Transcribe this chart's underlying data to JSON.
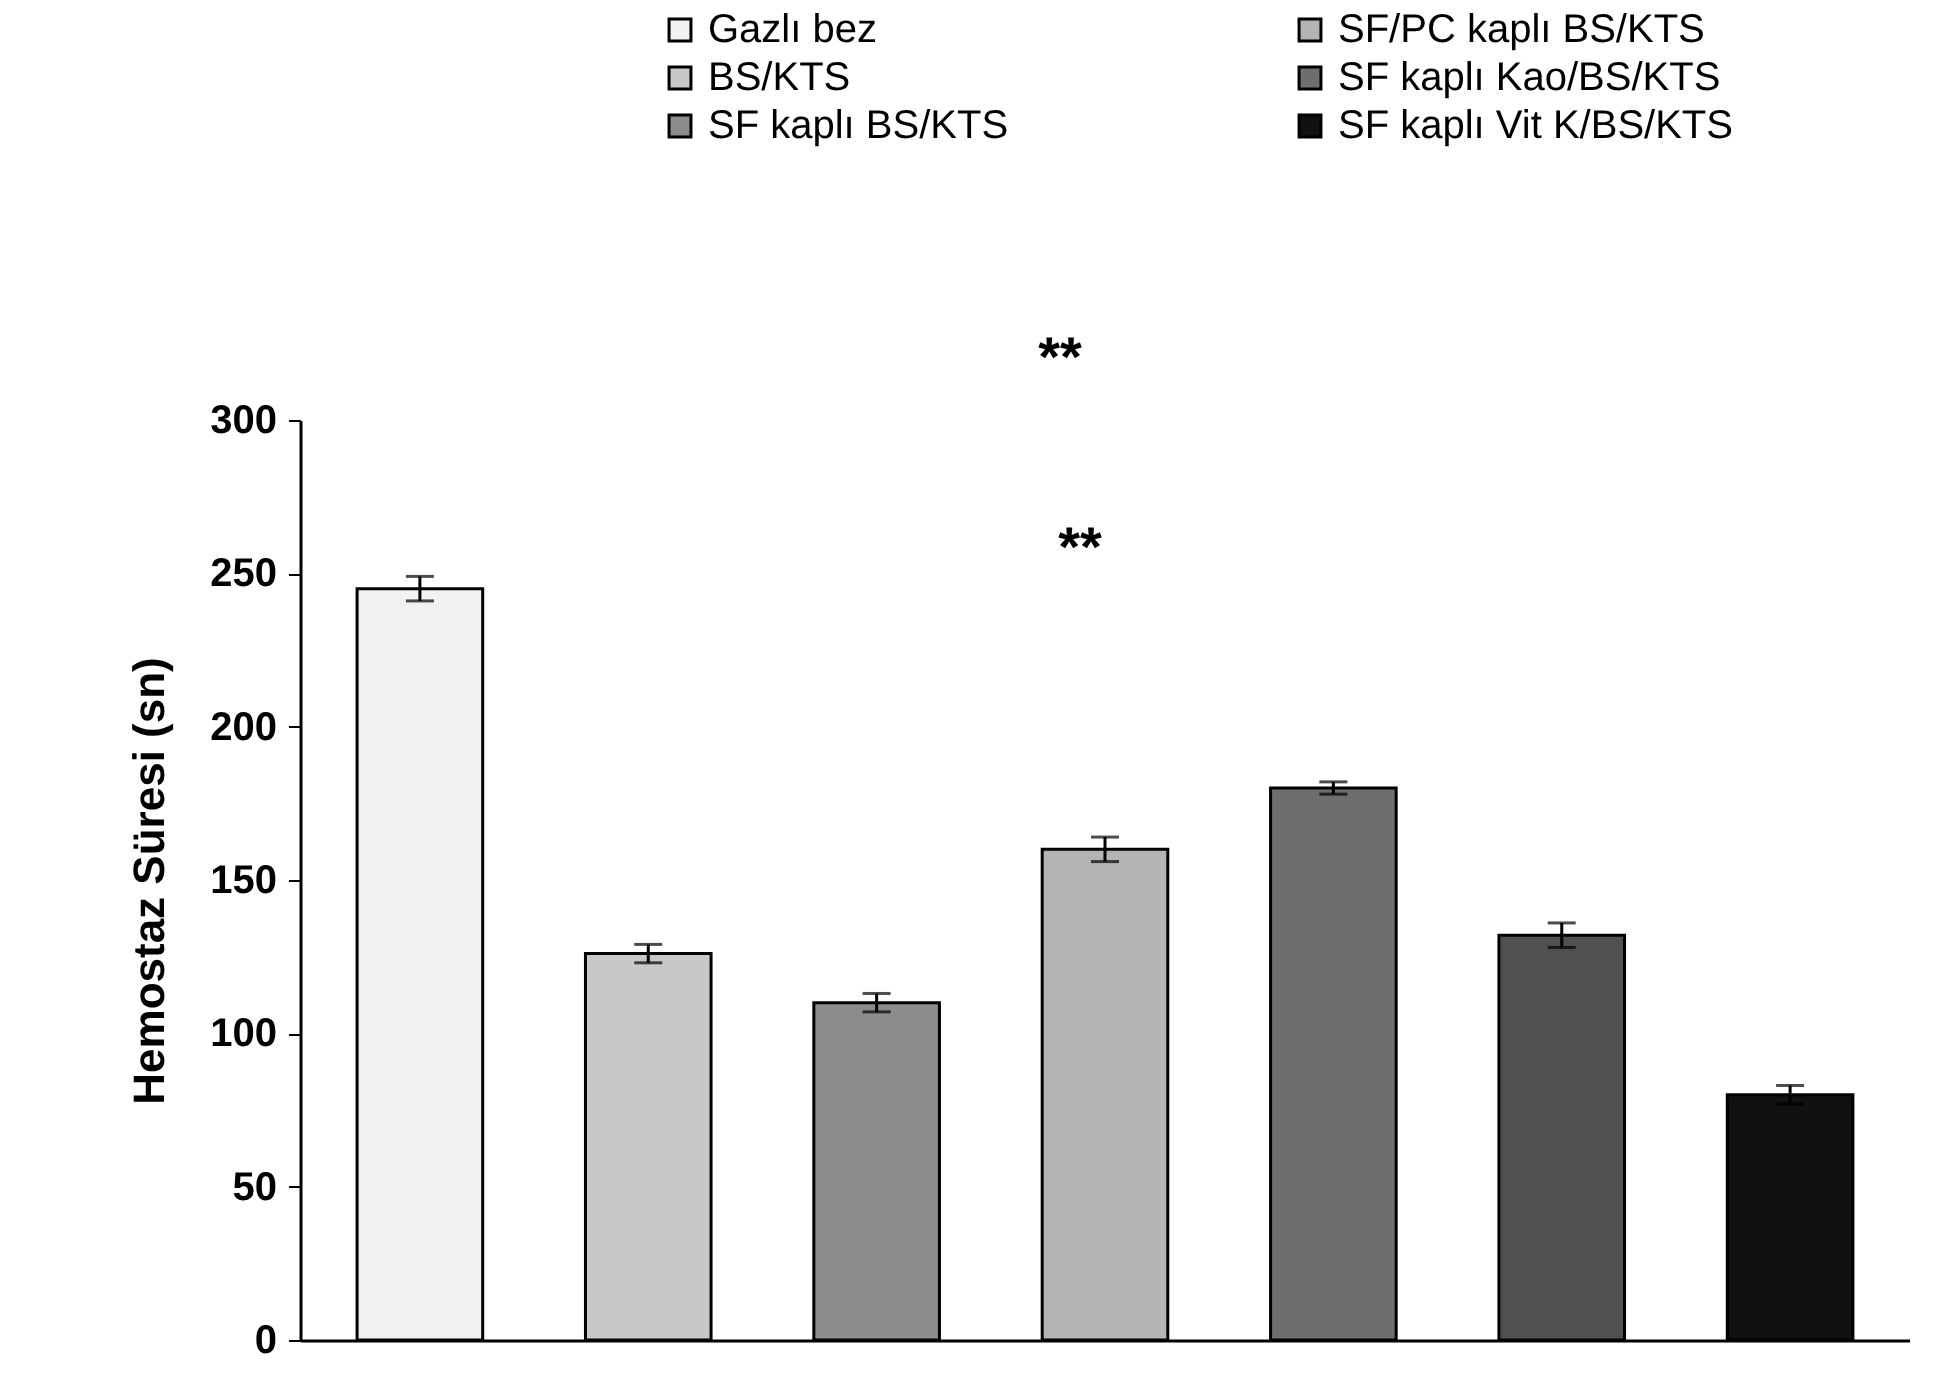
{
  "chart_data": {
    "type": "bar",
    "categories": [
      null,
      null,
      null,
      null,
      null,
      null,
      null
    ],
    "ylabel": "Hemostaz Süresi (sn)",
    "ylim": [
      0,
      300
    ],
    "yticks": [
      0,
      50,
      100,
      150,
      200,
      250,
      300
    ],
    "grid": false,
    "legend": "top",
    "series": [
      {
        "name": "Gazlı bez",
        "color": "#f2f2f2",
        "values": [
          245,
          null,
          null,
          null,
          null,
          null,
          null
        ],
        "errors": [
          4,
          null,
          null,
          null,
          null,
          null,
          null
        ]
      },
      {
        "name": "BS/KTS",
        "color": "#c8c8c8",
        "values": [
          null,
          126,
          null,
          null,
          null,
          null,
          null
        ],
        "errors": [
          null,
          3,
          null,
          null,
          null,
          null,
          null
        ]
      },
      {
        "name": "SF kaplı BS/KTS",
        "color": "#8c8c8c",
        "values": [
          null,
          null,
          110,
          null,
          null,
          null,
          null
        ],
        "errors": [
          null,
          null,
          3,
          null,
          null,
          null,
          null
        ]
      },
      {
        "name": "SF/PC kaplı BS/KTS",
        "color": "#b4b4b4",
        "values": [
          null,
          null,
          null,
          160,
          null,
          null,
          null
        ],
        "errors": [
          null,
          null,
          null,
          4,
          null,
          null,
          null
        ]
      },
      {
        "name": "SF kaplı Kao/BS/KTS",
        "color": "#6e6e6e",
        "values": [
          null,
          null,
          null,
          null,
          180,
          null,
          null
        ],
        "errors": [
          null,
          null,
          null,
          null,
          2,
          null,
          null
        ]
      },
      {
        "color": "#505050",
        "values": [
          null,
          null,
          null,
          null,
          null,
          132,
          null
        ],
        "errors": [
          null,
          null,
          null,
          null,
          null,
          4,
          null
        ]
      },
      {
        "name": "SF kaplı Vit K/BS/KTS",
        "color": "#111111",
        "values": [
          null,
          null,
          null,
          null,
          null,
          null,
          80
        ],
        "errors": [
          null,
          null,
          null,
          null,
          null,
          null,
          3
        ]
      }
    ],
    "annotations": [
      "**",
      "**"
    ]
  }
}
